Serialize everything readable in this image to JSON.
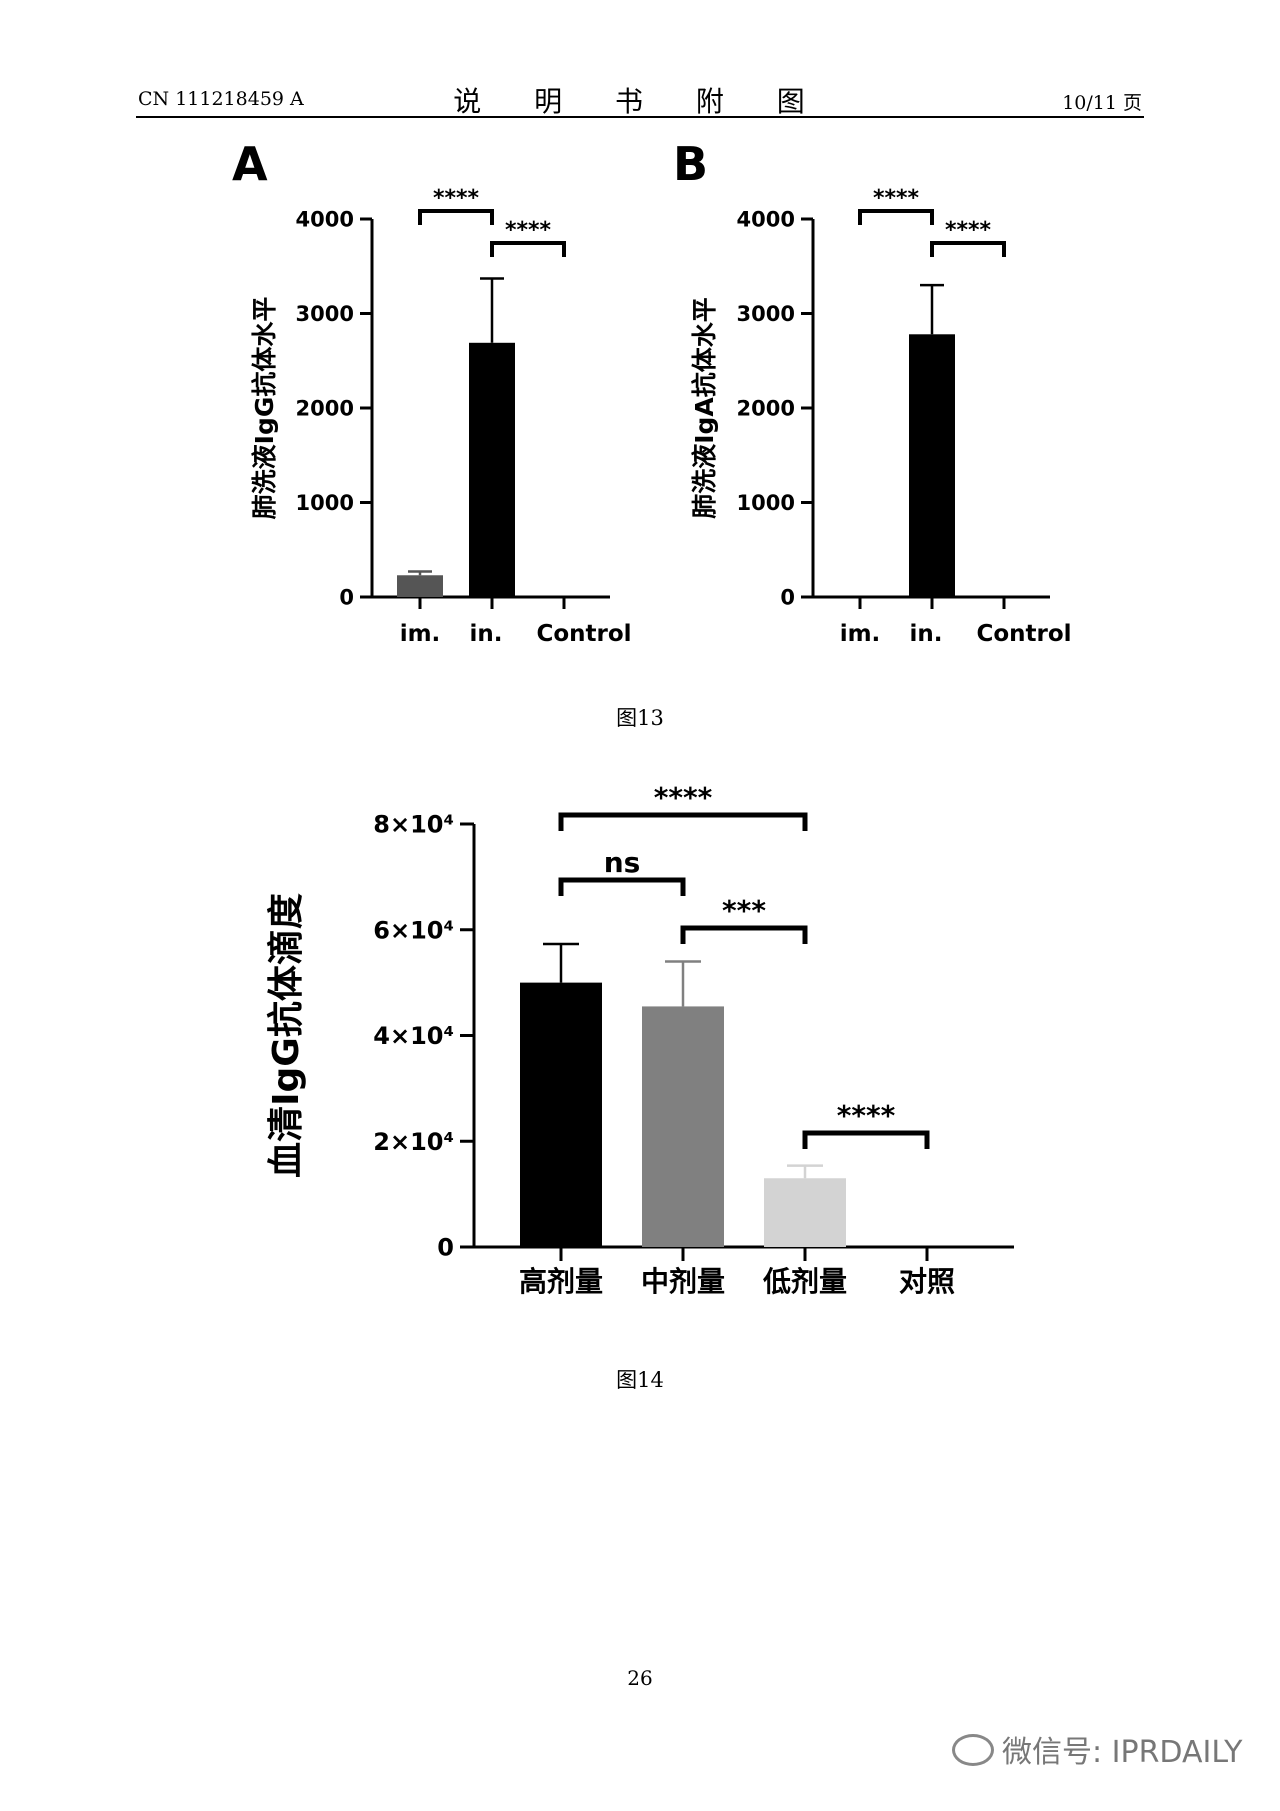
{
  "header": {
    "doc_id": "CN 111218459 A",
    "title": "说 明 书 附 图",
    "page_of": "10/11 页"
  },
  "figures": {
    "fig13_caption": "图13",
    "fig14_caption": "图14"
  },
  "page_number": "26",
  "watermark": "微信号: IPRDAILY",
  "chart_data": [
    {
      "type": "bar",
      "panel_label": "A",
      "ylabel": "肺洗液IgG抗体水平",
      "categories": [
        "im.",
        "in.",
        "Control"
      ],
      "values": [
        230,
        2690,
        0
      ],
      "error_upper": [
        270,
        3370,
        0
      ],
      "ylim": [
        0,
        4000
      ],
      "yticks": [
        "0",
        "1000",
        "2000",
        "3000",
        "4000"
      ],
      "bar_colors": [
        "#555555",
        "#000000",
        "#000000"
      ],
      "significance": [
        {
          "from": 0,
          "to": 1,
          "label": "****"
        },
        {
          "from": 1,
          "to": 2,
          "label": "****"
        }
      ]
    },
    {
      "type": "bar",
      "panel_label": "B",
      "ylabel": "肺洗液IgA抗体水平",
      "categories": [
        "im.",
        "in.",
        "Control"
      ],
      "values": [
        0,
        2780,
        0
      ],
      "error_upper": [
        0,
        3300,
        0
      ],
      "ylim": [
        0,
        4000
      ],
      "yticks": [
        "0",
        "1000",
        "2000",
        "3000",
        "4000"
      ],
      "bar_colors": [
        "#555555",
        "#000000",
        "#000000"
      ],
      "significance": [
        {
          "from": 0,
          "to": 1,
          "label": "****"
        },
        {
          "from": 1,
          "to": 2,
          "label": "****"
        }
      ]
    },
    {
      "type": "bar",
      "ylabel": "血清IgG抗体滴度",
      "categories": [
        "高剂量",
        "中剂量",
        "低剂量",
        "对照"
      ],
      "values": [
        50000,
        45500,
        13000,
        0
      ],
      "error_upper": [
        57300,
        54000,
        15400,
        0
      ],
      "ylim": [
        0,
        80000
      ],
      "yticks": [
        "0",
        "2×10⁴",
        "4×10⁴",
        "6×10⁴",
        "8×10⁴"
      ],
      "bar_colors": [
        "#000000",
        "#808080",
        "#d3d3d3",
        "#ffffff"
      ],
      "significance": [
        {
          "from": 0,
          "to": 2,
          "label": "****"
        },
        {
          "from": 0,
          "to": 1,
          "label": "ns"
        },
        {
          "from": 1,
          "to": 2,
          "label": "***"
        },
        {
          "from": 2,
          "to": 3,
          "label": "****"
        }
      ]
    }
  ]
}
